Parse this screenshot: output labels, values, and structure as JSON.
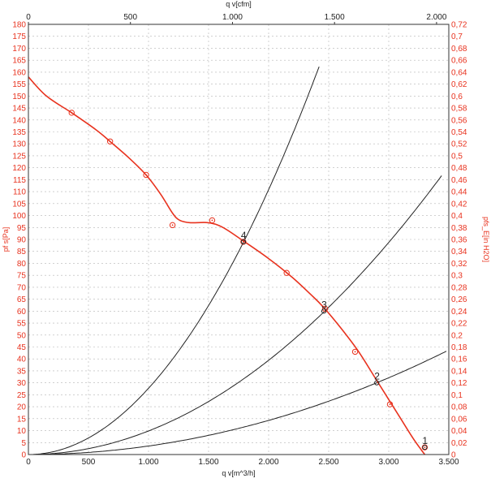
{
  "chart_data": {
    "type": "line",
    "title": "",
    "axes": {
      "x_bottom": {
        "label": "q v[m^3/h]",
        "range": [
          0,
          3500
        ],
        "ticks": [
          "0",
          "500",
          "1.000",
          "1.500",
          "2.000",
          "2.500",
          "3.000",
          "3.500"
        ]
      },
      "x_top": {
        "label": "q v[cfm]",
        "range": [
          0,
          2060
        ],
        "ticks": [
          "0",
          "500",
          "1.000",
          "1.500",
          "2.000"
        ]
      },
      "y_left": {
        "label": "pf s[Pa]",
        "range": [
          0,
          180
        ],
        "ticks": [
          "0",
          "5",
          "10",
          "15",
          "20",
          "25",
          "30",
          "35",
          "40",
          "45",
          "50",
          "55",
          "60",
          "65",
          "70",
          "75",
          "80",
          "85",
          "90",
          "95",
          "100",
          "105",
          "110",
          "115",
          "120",
          "125",
          "130",
          "135",
          "140",
          "145",
          "150",
          "155",
          "160",
          "165",
          "170",
          "175",
          "180"
        ]
      },
      "y_right": {
        "label": "pfs_E[in H2O]",
        "range": [
          0,
          0.72
        ],
        "ticks": [
          "0",
          "0,02",
          "0,04",
          "0,06",
          "0,08",
          "0,1",
          "0,12",
          "0,14",
          "0,16",
          "0,18",
          "0,2",
          "0,22",
          "0,24",
          "0,26",
          "0,28",
          "0,3",
          "0,32",
          "0,34",
          "0,36",
          "0,38",
          "0,4",
          "0,42",
          "0,44",
          "0,46",
          "0,48",
          "0,5",
          "0,52",
          "0,54",
          "0,56",
          "0,58",
          "0,6",
          "0,62",
          "0,64",
          "0,66",
          "0,68",
          "0,7",
          "0,72"
        ]
      }
    },
    "grid": true,
    "colors": {
      "fan_curve": "#e8321e",
      "system_curve": "#222222",
      "grid": "#b4b4b4",
      "axis_text_right": "#e8321e"
    },
    "series": [
      {
        "role": "fan_curve",
        "x": [
          0,
          150,
          360,
          560,
          680,
          840,
          980,
          1100,
          1200,
          1260,
          1350,
          1500,
          1620,
          1800,
          2000,
          2200,
          2350,
          2450,
          2600,
          2750,
          2900,
          3000,
          3100,
          3200,
          3270,
          3300
        ],
        "y": [
          158,
          150,
          143,
          136,
          131,
          124,
          117,
          109,
          101,
          98,
          97,
          97,
          95,
          89,
          82,
          74,
          67,
          62,
          53,
          43,
          31,
          23,
          15,
          7,
          2,
          0
        ],
        "markers": [
          {
            "x": 360,
            "y": 143
          },
          {
            "x": 680,
            "y": 131
          },
          {
            "x": 980,
            "y": 117
          },
          {
            "x": 1200,
            "y": 96
          },
          {
            "x": 1530,
            "y": 98
          },
          {
            "x": 1790,
            "y": 89
          },
          {
            "x": 2150,
            "y": 76
          },
          {
            "x": 2470,
            "y": 61
          },
          {
            "x": 2720,
            "y": 43
          },
          {
            "x": 3010,
            "y": 21
          },
          {
            "x": 3300,
            "y": 3
          }
        ]
      },
      {
        "role": "system_curve",
        "k": 2.771e-05,
        "x_max": 2430
      },
      {
        "role": "system_curve",
        "k": 9.86e-06,
        "x_max": 3450
      },
      {
        "role": "system_curve",
        "k": 3.57e-06,
        "x_max": 3480
      }
    ],
    "operating_points": [
      {
        "label": "4",
        "x": 1790,
        "y": 89
      },
      {
        "label": "3",
        "x": 2460,
        "y": 60
      },
      {
        "label": "2",
        "x": 2900,
        "y": 30
      },
      {
        "label": "1",
        "x": 3300,
        "y": 3
      }
    ]
  }
}
